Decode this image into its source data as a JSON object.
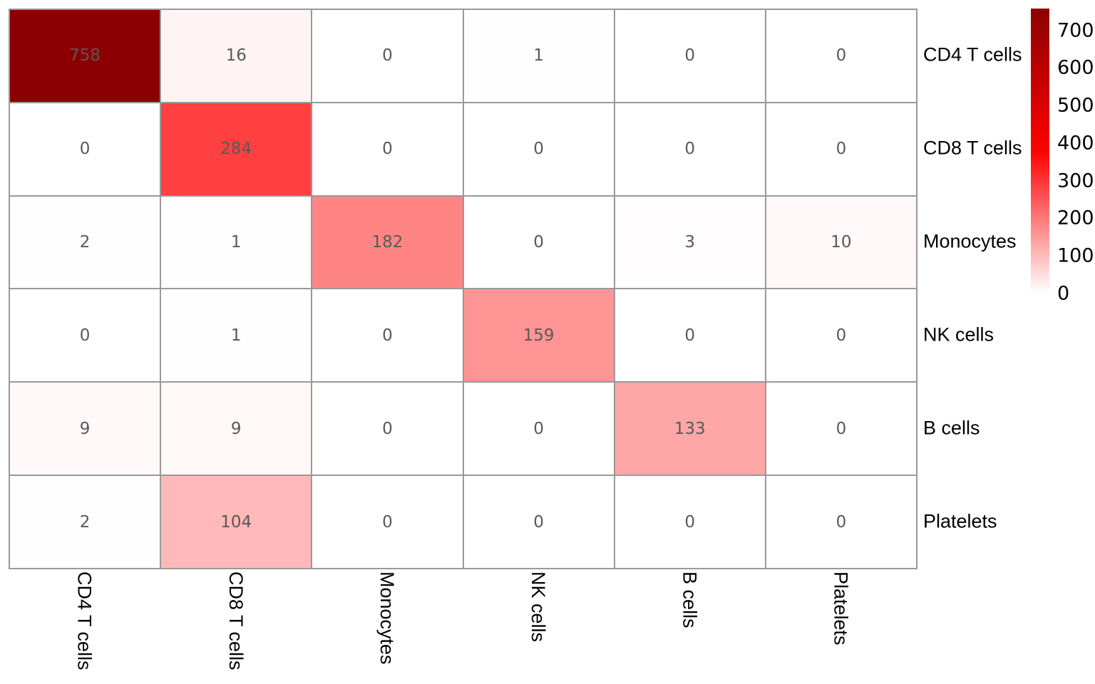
{
  "chart_data": {
    "type": "heatmap",
    "title": "",
    "xlabel": "",
    "ylabel": "",
    "row_labels": [
      "CD4 T cells",
      "CD8 T cells",
      "Monocytes",
      "NK cells",
      "B cells",
      "Platelets"
    ],
    "col_labels": [
      "CD4 T cells",
      "CD8 T cells",
      "Monocytes",
      "NK cells",
      "B cells",
      "Platelets"
    ],
    "matrix": [
      [
        758,
        16,
        0,
        1,
        0,
        0
      ],
      [
        0,
        284,
        0,
        0,
        0,
        0
      ],
      [
        2,
        1,
        182,
        0,
        3,
        10
      ],
      [
        0,
        1,
        0,
        159,
        0,
        0
      ],
      [
        9,
        9,
        0,
        0,
        133,
        0
      ],
      [
        2,
        104,
        0,
        0,
        0,
        0
      ]
    ],
    "vmin": 0,
    "vmax": 758,
    "colorbar_ticks": [
      700,
      600,
      500,
      400,
      300,
      200,
      100,
      0
    ],
    "colorbar_position": "right",
    "colormap": {
      "low": "#ffffff",
      "mid": "#ff0000",
      "high": "#8b0000"
    },
    "grid_line_color": "#999999",
    "cell_text_color": "#595959",
    "label_text_color": "#000000",
    "grid": true,
    "legend": false
  }
}
